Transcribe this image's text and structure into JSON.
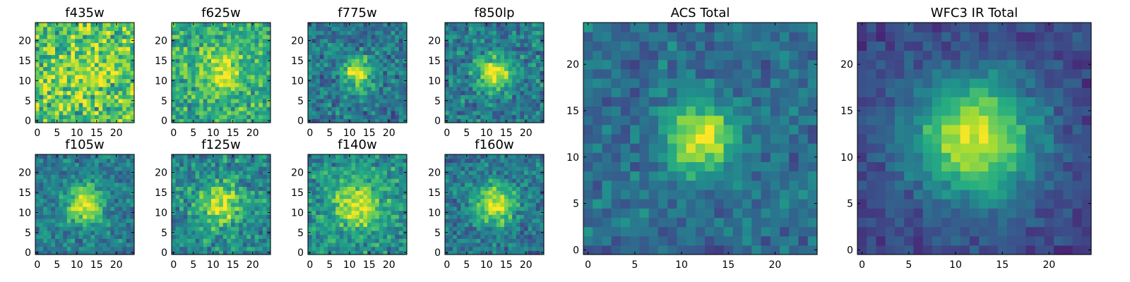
{
  "chart_data": {
    "type": "heatmap",
    "colormap": "viridis",
    "grid_size": 25,
    "panels": [
      {
        "id": "f435w",
        "title": "f435w",
        "peak": 0.12,
        "noise": 0.3,
        "base": 0.74,
        "sigma": 4.0,
        "seed": 11,
        "xticks": [
          0,
          5,
          10,
          15,
          20
        ],
        "yticks": [
          0,
          5,
          10,
          15,
          20
        ],
        "xlim": [
          0,
          25
        ],
        "ylim": [
          0,
          25
        ]
      },
      {
        "id": "f625w",
        "title": "f625w",
        "peak": 0.3,
        "noise": 0.22,
        "base": 0.62,
        "sigma": 4.0,
        "seed": 23,
        "xticks": [
          0,
          5,
          10,
          15,
          20
        ],
        "yticks": [
          0,
          5,
          10,
          15,
          20
        ],
        "xlim": [
          0,
          25
        ],
        "ylim": [
          0,
          25
        ]
      },
      {
        "id": "f775w",
        "title": "f775w",
        "peak": 0.55,
        "noise": 0.2,
        "base": 0.4,
        "sigma": 2.8,
        "seed": 37,
        "xticks": [
          0,
          5,
          10,
          15,
          20
        ],
        "yticks": [
          0,
          5,
          10,
          15,
          20
        ],
        "xlim": [
          0,
          25
        ],
        "ylim": [
          0,
          25
        ]
      },
      {
        "id": "f850lp",
        "title": "f850lp",
        "peak": 0.55,
        "noise": 0.2,
        "base": 0.42,
        "sigma": 3.0,
        "seed": 41,
        "xticks": [
          0,
          5,
          10,
          15,
          20
        ],
        "yticks": [
          0,
          5,
          10,
          15,
          20
        ],
        "xlim": [
          0,
          25
        ],
        "ylim": [
          0,
          25
        ]
      },
      {
        "id": "f105w",
        "title": "f105w",
        "peak": 0.55,
        "noise": 0.18,
        "base": 0.42,
        "sigma": 3.4,
        "seed": 53,
        "xticks": [
          0,
          5,
          10,
          15,
          20
        ],
        "yticks": [
          0,
          5,
          10,
          15,
          20
        ],
        "xlim": [
          0,
          25
        ],
        "ylim": [
          0,
          25
        ]
      },
      {
        "id": "f125w",
        "title": "f125w",
        "peak": 0.45,
        "noise": 0.2,
        "base": 0.48,
        "sigma": 3.8,
        "seed": 67,
        "xticks": [
          0,
          5,
          10,
          15,
          20
        ],
        "yticks": [
          0,
          5,
          10,
          15,
          20
        ],
        "xlim": [
          0,
          25
        ],
        "ylim": [
          0,
          25
        ]
      },
      {
        "id": "f140w",
        "title": "f140w",
        "peak": 0.45,
        "noise": 0.2,
        "base": 0.5,
        "sigma": 4.2,
        "seed": 71,
        "xticks": [
          0,
          5,
          10,
          15,
          20
        ],
        "yticks": [
          0,
          5,
          10,
          15,
          20
        ],
        "xlim": [
          0,
          25
        ],
        "ylim": [
          0,
          25
        ]
      },
      {
        "id": "f160w",
        "title": "f160w",
        "peak": 0.55,
        "noise": 0.18,
        "base": 0.4,
        "sigma": 3.6,
        "seed": 83,
        "xticks": [
          0,
          5,
          10,
          15,
          20
        ],
        "yticks": [
          0,
          5,
          10,
          15,
          20
        ],
        "xlim": [
          0,
          25
        ],
        "ylim": [
          0,
          25
        ]
      },
      {
        "id": "acs-total",
        "title": "ACS Total",
        "peak": 0.62,
        "noise": 0.14,
        "base": 0.36,
        "sigma": 2.6,
        "seed": 97,
        "xticks": [
          0,
          5,
          10,
          15,
          20
        ],
        "yticks": [
          0,
          5,
          10,
          15,
          20
        ],
        "xlim": [
          0,
          25
        ],
        "ylim": [
          0,
          25
        ]
      },
      {
        "id": "wfc3-total",
        "title": "WFC3 IR Total",
        "peak": 0.72,
        "noise": 0.1,
        "base": 0.22,
        "sigma": 4.6,
        "seed": 101,
        "xticks": [
          0,
          5,
          10,
          15,
          20
        ],
        "yticks": [
          0,
          5,
          10,
          15,
          20
        ],
        "xlim": [
          0,
          25
        ],
        "ylim": [
          0,
          25
        ]
      }
    ],
    "source_center": [
      12.5,
      12.5
    ],
    "xlabel": "",
    "ylabel": ""
  }
}
